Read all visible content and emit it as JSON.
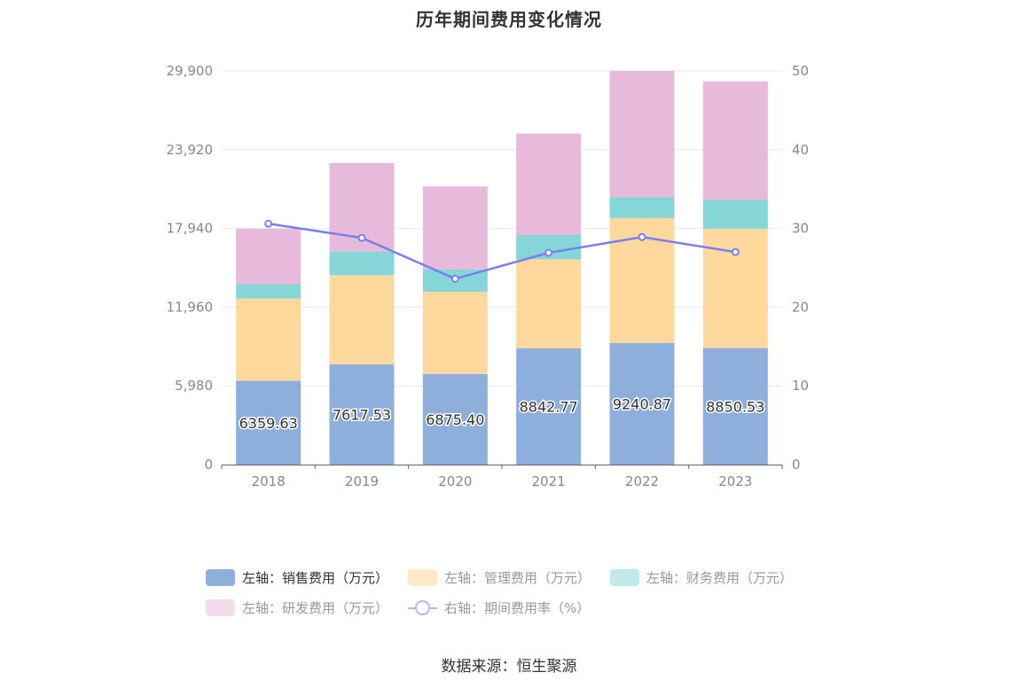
{
  "title": "历年期间费用变化情况",
  "source": "数据来源：恒生聚源",
  "colors": {
    "sales": "#8eaedb",
    "admin": "#fed89c",
    "finance": "#86d6d8",
    "rnd": "#e7b9da",
    "rate_line": "#7a7ff0",
    "grid": "#e3e8f2",
    "axis": "#666666",
    "tick_text": "#888888"
  },
  "legend": {
    "sales": "左轴：销售费用（万元）",
    "admin": "左轴：管理费用（万元）",
    "finance": "左轴：财务费用（万元）",
    "rnd": "左轴：研发费用（万元）",
    "rate": "右轴：期间费用率（%）"
  },
  "chart_data": {
    "type": "bar",
    "stacked": true,
    "categories": [
      "2018",
      "2019",
      "2020",
      "2021",
      "2022",
      "2023"
    ],
    "series": [
      {
        "name": "左轴：销售费用（万元）",
        "axis": "left",
        "values": [
          6359.63,
          7617.53,
          6875.4,
          8842.77,
          9240.87,
          8850.53
        ],
        "labels": [
          "6359.63",
          "7617.53",
          "6875.40",
          "8842.77",
          "9240.87",
          "8850.53"
        ]
      },
      {
        "name": "左轴：管理费用（万元）",
        "axis": "left",
        "values": [
          6250,
          6770,
          6250,
          6750,
          9480,
          9050
        ]
      },
      {
        "name": "左轴：财务费用（万元）",
        "axis": "left",
        "values": [
          1100,
          1800,
          1700,
          1850,
          1600,
          2200
        ]
      },
      {
        "name": "左轴：研发费用（万元）",
        "axis": "left",
        "values": [
          4200,
          6720,
          6300,
          7700,
          9580,
          9000
        ]
      },
      {
        "name": "右轴：期间费用率（%）",
        "axis": "right",
        "type": "line",
        "values": [
          30.6,
          28.8,
          23.6,
          26.9,
          28.9,
          27.0
        ]
      }
    ],
    "left_axis": {
      "ticks": [
        "0",
        "5,980",
        "11,960",
        "17,940",
        "23,920",
        "29,900"
      ],
      "ylim": [
        0,
        29900
      ]
    },
    "right_axis": {
      "ticks": [
        "0",
        "10",
        "20",
        "30",
        "40",
        "50"
      ],
      "ylim": [
        0,
        50
      ]
    },
    "grid": true,
    "legend_position": "bottom"
  }
}
